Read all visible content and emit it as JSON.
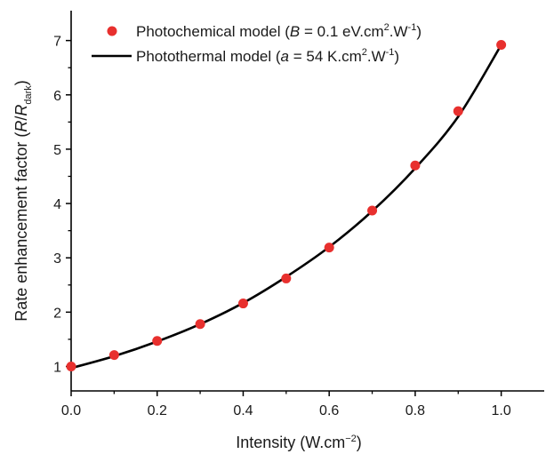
{
  "chart_data": {
    "type": "scatter",
    "xlabel": "Intensity (W.cm−2)",
    "xlabel_parts": {
      "main": "Intensity (W.cm",
      "sup": "−2",
      "tail": ")"
    },
    "ylabel": "Rate enhancement factor (R/Rdark)",
    "ylabel_parts": {
      "main": "Rate enhancement factor (",
      "r": "R",
      "slash": "/",
      "r2": "R",
      "sub": "dark",
      "tail": ")"
    },
    "xlim": [
      0.0,
      1.1
    ],
    "ylim": [
      0.55,
      7.55
    ],
    "x_ticks": [
      0.0,
      0.2,
      0.4,
      0.6,
      0.8,
      1.0
    ],
    "x_tick_labels": [
      "0.0",
      "0.2",
      "0.4",
      "0.6",
      "0.8",
      "1.0"
    ],
    "y_ticks": [
      1,
      2,
      3,
      4,
      5,
      6,
      7
    ],
    "y_tick_labels": [
      "1",
      "2",
      "3",
      "4",
      "5",
      "6",
      "7"
    ],
    "grid": false,
    "legend_position": "top",
    "series": [
      {
        "kind": "scatter",
        "color": "#e8302e",
        "legend_parts": {
          "pre": "Photochemical model (",
          "sym": "B",
          "mid": " = 0.1 eV.cm",
          "sup1": "2",
          "mid2": ".W",
          "sup2": "-1",
          "tail": ")"
        },
        "x": [
          0.0,
          0.1,
          0.2,
          0.3,
          0.4,
          0.5,
          0.6,
          0.7,
          0.8,
          0.9,
          1.0
        ],
        "y": [
          1.0,
          1.21,
          1.47,
          1.78,
          2.16,
          2.62,
          3.19,
          3.87,
          4.7,
          5.7,
          6.92
        ]
      },
      {
        "kind": "line",
        "color": "#000000",
        "legend_parts": {
          "pre": "Photothermal model (",
          "sym": "a",
          "mid": " = 54 K.cm",
          "sup1": "2",
          "mid2": ".W",
          "sup2": "-1",
          "tail": ")"
        },
        "x": [
          0.0,
          0.1,
          0.2,
          0.3,
          0.4,
          0.5,
          0.6,
          0.7,
          0.8,
          0.9,
          1.0
        ],
        "y": [
          0.97,
          1.19,
          1.46,
          1.78,
          2.17,
          2.65,
          3.2,
          3.86,
          4.65,
          5.6,
          6.92
        ]
      }
    ]
  }
}
